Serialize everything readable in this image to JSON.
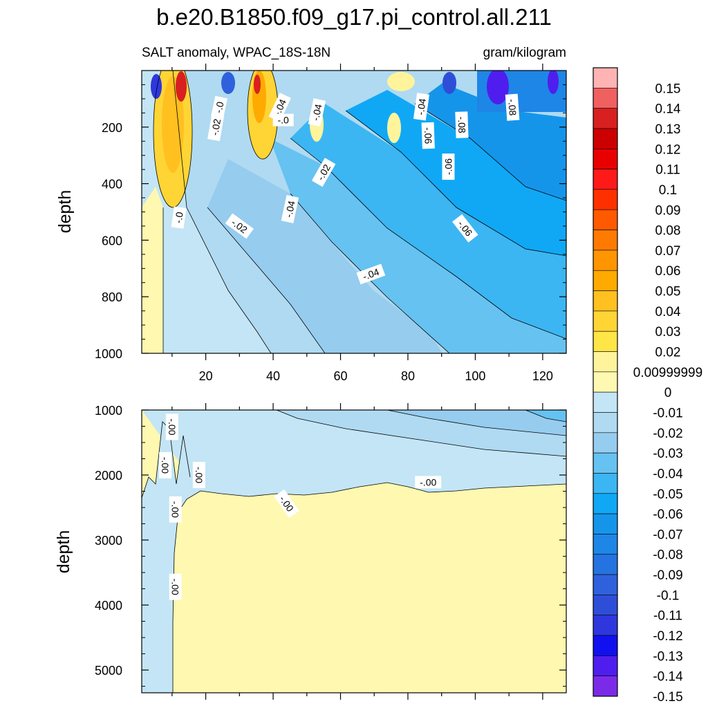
{
  "chart_data": [
    {
      "type": "heatmap",
      "panel": "upper",
      "title": "b.e20.B1850.f09_g17.pi_control.all.211",
      "left_subtitle": "SALT anomaly, WPAC_18S-18N",
      "right_subtitle": "gram/kilogram",
      "xlabel": "",
      "ylabel": "depth",
      "xlim": [
        1,
        127
      ],
      "ylim": [
        0,
        1000
      ],
      "y_reversed": true,
      "x_ticks": [
        "20",
        "40",
        "60",
        "80",
        "100",
        "120"
      ],
      "y_ticks": [
        "200",
        "400",
        "600",
        "800",
        "1000"
      ],
      "contour_labels": [
        "-.0",
        "-.0",
        "-.04",
        "-.04",
        "-.02",
        "-.02",
        "-.06",
        "-.08",
        "-.08",
        "-.06",
        "-.04",
        "-.04",
        "-.0",
        "-.02",
        "-.06",
        "-.04"
      ],
      "field_summary": "Positive salinity anomalies (0.02 to 0.15) in upper ~300 depth near x 5-20, 30-40 and 75; negative anomalies deepening eastward reaching -0.06 to -0.15 in upper 400 near x 100-127."
    },
    {
      "type": "heatmap",
      "panel": "lower",
      "xlabel": "",
      "ylabel": "depth",
      "xlim": [
        1,
        127
      ],
      "ylim": [
        1000,
        5350
      ],
      "y_reversed": true,
      "y_ticks": [
        "1000",
        "2000",
        "3000",
        "4000",
        "5000"
      ],
      "contour_labels": [
        "-.00",
        "-.00",
        "-.00",
        "-.00",
        "-.00",
        "-.00",
        "-.00"
      ],
      "field_summary": "Weak negative anomaly (-0.01 to -0.04) above ~2200 depth, increasing toward x 120; near-zero positive (0 to 0.01) below ~2200; narrow negative column at x < 10 down to bottom."
    }
  ],
  "colorbar": {
    "labels": [
      "0.15",
      "0.14",
      "0.13",
      "0.12",
      "0.11",
      "0.1",
      "0.09",
      "0.08",
      "0.07",
      "0.06",
      "0.05",
      "0.04",
      "0.03",
      "0.02",
      "0.00999999",
      "0",
      "-0.01",
      "-0.02",
      "-0.03",
      "-0.04",
      "-0.05",
      "-0.06",
      "-0.07",
      "-0.08",
      "-0.09",
      "-0.1",
      "-0.11",
      "-0.12",
      "-0.13",
      "-0.14",
      "-0.15"
    ],
    "colors": [
      "#FFB3B3",
      "#F06060",
      "#D82020",
      "#CC0000",
      "#E80000",
      "#FF1A1A",
      "#FF3000",
      "#FF5A00",
      "#FF7A00",
      "#FF9500",
      "#FFAA00",
      "#FFC020",
      "#FFD535",
      "#FFE545",
      "#FFF49C",
      "#FEF8B0",
      "#C3E5F5",
      "#AFDAF2",
      "#96CCEE",
      "#66C2F0",
      "#3BB6F3",
      "#10A8F5",
      "#1595EA",
      "#1E86E6",
      "#2573E0",
      "#2F61DC",
      "#2F4ED8",
      "#2E37DC",
      "#1111F0",
      "#4F1EEE",
      "#7B2BE8"
    ]
  }
}
